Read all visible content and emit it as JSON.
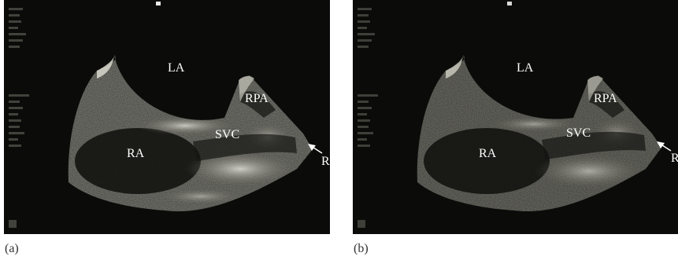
{
  "panels": [
    {
      "caption": "(a)",
      "labels": {
        "la": "LA",
        "rpa": "RPA",
        "svc": "SVC",
        "ra": "RA",
        "r": "R"
      }
    },
    {
      "caption": "(b)",
      "labels": {
        "la": "LA",
        "rpa": "RPA",
        "svc": "SVC",
        "ra": "RA",
        "r": "R"
      }
    }
  ]
}
